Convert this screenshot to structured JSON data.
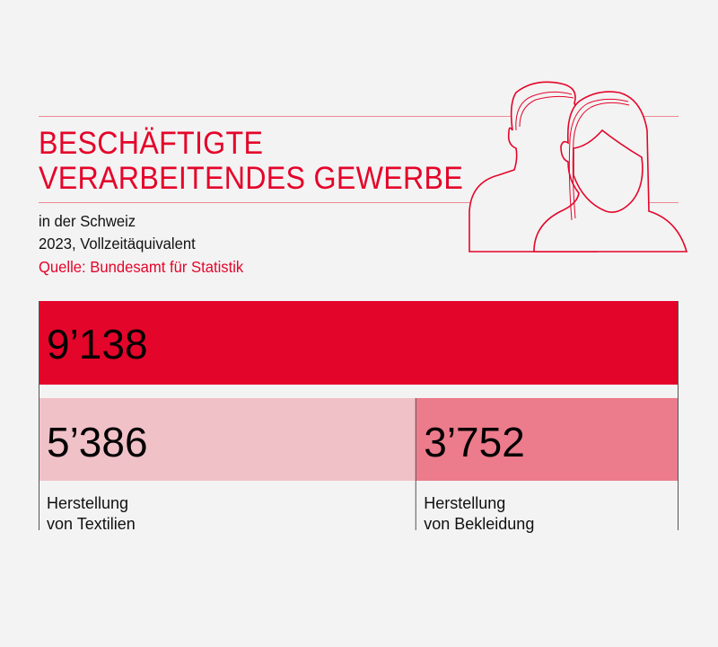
{
  "header": {
    "title_line1": "BESCHÄFTIGTE",
    "title_line2": "VERARBEITENDES GEWERBE",
    "subtitle_line1": "in der Schweiz",
    "subtitle_line2": "2023, Vollzeitäquivalent",
    "source": "Quelle: Bundesamt für Statistik",
    "icon": "people-icon"
  },
  "colors": {
    "total": "#e4052a",
    "textilien": "#f1c1c8",
    "bekleidung": "#ec7b8b",
    "accent": "#e4052a"
  },
  "chart_data": {
    "type": "bar",
    "total": {
      "value": 9138,
      "label": "9’138"
    },
    "parts": [
      {
        "value": 5386,
        "label": "5’386",
        "category_line1": "Herstellung",
        "category_line2": "von Textilien"
      },
      {
        "value": 3752,
        "label": "3’752",
        "category_line1": "Herstellung",
        "category_line2": "von Bekleidung"
      }
    ]
  }
}
